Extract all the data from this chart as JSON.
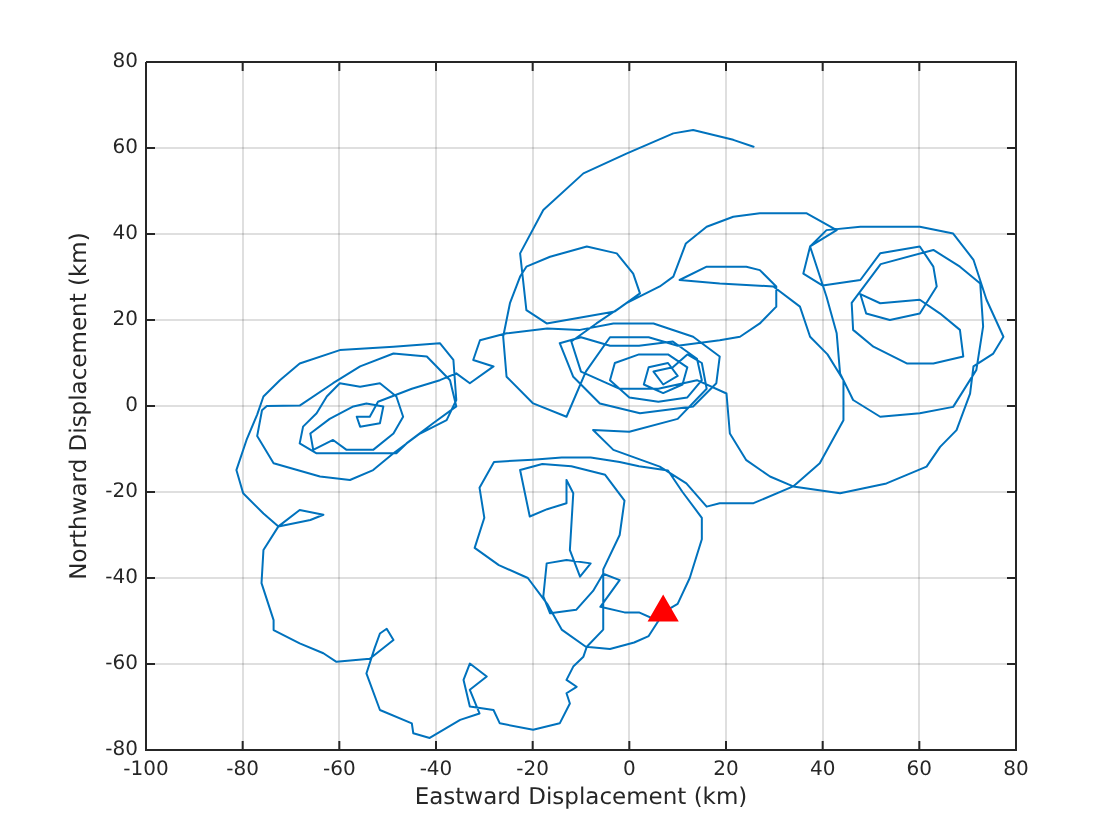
{
  "chart_data": {
    "type": "line",
    "xlabel": "Eastward Displacement (km)",
    "ylabel": "Northward Displacement (km)",
    "xlim": [
      -100,
      80
    ],
    "ylim": [
      -80,
      80
    ],
    "xticks": [
      -100,
      -80,
      -60,
      -40,
      -20,
      0,
      20,
      40,
      60,
      80
    ],
    "yticks": [
      -80,
      -60,
      -40,
      -20,
      0,
      20,
      40,
      60,
      80
    ],
    "grid": true,
    "series": [
      {
        "color": "#0072bd",
        "marker": "none",
        "x": [
          7,
          10,
          12.5,
          15,
          15,
          11,
          8,
          2,
          -2,
          -8,
          -14,
          -20,
          -28,
          -31,
          -30,
          -32,
          -27,
          -21,
          -17,
          -14,
          -9,
          -4,
          1,
          4,
          6,
          2,
          -1,
          -6,
          -2,
          -5.4,
          -7.5,
          -11,
          -16.4,
          -17.8,
          -17.1,
          -13,
          -8,
          -10.2,
          -12.3,
          -11.6,
          -13,
          -13,
          -17,
          -20.6,
          -22.6,
          -18,
          -12,
          -5,
          -1,
          -2,
          -5.4,
          -5.4,
          -8.8,
          -9.5,
          -11.6,
          -13,
          -10.9,
          -13,
          -12.3,
          -14.4,
          -19.9,
          -26.8,
          -28.1,
          -33,
          -34.3,
          -33,
          -29.5,
          -33,
          -31,
          -35,
          -41.3,
          -44.7,
          -45,
          -51.6,
          -54.4,
          -52.7,
          -51.6,
          -50.2,
          -48.8,
          -53.7,
          -60.6,
          -63.3,
          -68.2,
          -73.6,
          -73.6,
          -76.1,
          -75.7,
          -72.6,
          -68.2,
          -63.3,
          -66,
          -72.6,
          -75.7,
          -79.9,
          -81.3,
          -79.2,
          -77,
          -75.7,
          -72.3,
          -68.2,
          -59.9,
          -48.8,
          -39.2,
          -36.4,
          -35.8,
          -37.8,
          -43.3,
          -48.8,
          -53,
          -57.8,
          -64,
          -73.6,
          -77,
          -76,
          -75,
          -68.2,
          -61.3,
          -55.7,
          -48.8,
          -41.9,
          -37.1,
          -35.8,
          -40.6,
          -46.1,
          -48.2,
          -54.4,
          -64.7,
          -68.2,
          -67.5,
          -64.7,
          -62.6,
          -59.9,
          -55.7,
          -51.6,
          -48.2,
          -46.8,
          -48.8,
          -53,
          -58.5,
          -61.3,
          -65.4,
          -66,
          -62,
          -57.1,
          -54.4,
          -50.9,
          -51.6,
          -55.7,
          -56.4,
          -53.7,
          -52,
          -45,
          -39.2,
          -35.8,
          -33,
          -28.1,
          -32.3,
          -30.9,
          -25.4,
          -17,
          -10.2,
          -3.3,
          5,
          13.2,
          18.7,
          18,
          13.2,
          2.2,
          -6.1,
          -11.6,
          -14.4,
          -10,
          -4,
          2,
          9,
          14,
          15,
          12,
          6,
          0,
          -4,
          -3,
          2,
          8,
          12,
          11,
          7,
          3,
          4,
          8,
          10,
          7,
          5,
          9,
          12,
          15,
          16,
          10,
          0,
          -7.5,
          -3.3,
          6.3,
          11.8,
          16,
          18.7,
          25.7,
          33.9,
          43.6,
          53.2,
          61.5,
          64.3,
          67.7,
          70.5,
          71.2,
          75.3,
          77.4,
          73.9,
          71.2,
          67,
          60.1,
          53.2,
          47.8,
          40.8,
          37.4,
          36,
          40,
          47.8,
          51.9,
          60.1,
          62.9,
          63.6,
          60.1,
          53.9,
          49,
          47.8,
          51.9,
          60.1,
          64.3,
          68.4,
          69.1,
          62.9,
          57.4,
          50.5,
          46.3,
          46,
          52,
          62.9,
          68.4,
          72.6,
          73.2,
          71.8,
          67,
          60.1,
          51.9,
          46.3,
          43.6,
          42.9,
          40.8,
          37.4,
          42.9,
          36.7,
          27,
          21.5,
          16,
          11.7,
          9.1,
          6.3,
          -0.6,
          -6.8,
          -12,
          -10,
          -2,
          6,
          14,
          20.1,
          20.8,
          24.2,
          29.1,
          33.9,
          39.4,
          44.3,
          44.3,
          41,
          37.4,
          35.3,
          29.8,
          18.7,
          10.4,
          16,
          24.2,
          27,
          30.4,
          30.4,
          27,
          22.9,
          18.7,
          10,
          4,
          -4,
          -9,
          -13,
          -19.9,
          -25.4,
          -26.1,
          -24.7,
          -22.6,
          -21.3,
          -16.4,
          -8.8,
          -2.6,
          0.8,
          2.2,
          -3,
          -17.1,
          -21.3,
          -22.6,
          -17.8,
          -9.5,
          -0.6,
          9.1,
          13.2,
          21.5,
          25.7
        ],
        "values": [
          -48,
          -46,
          -40,
          -31,
          -26,
          -20,
          -15,
          -14,
          -13,
          -12,
          -12,
          -12.5,
          -13,
          -19,
          -26,
          -33,
          -37,
          -40,
          -46,
          -52,
          -56,
          -56.5,
          -55,
          -53.5,
          -50,
          -48,
          -48,
          -46.7,
          -40.5,
          -39,
          -43,
          -47.4,
          -48.2,
          -44.3,
          -36.6,
          -35.8,
          -36.6,
          -39.7,
          -33.5,
          -20.3,
          -17.2,
          -22.6,
          -24,
          -25.7,
          -14.9,
          -13.5,
          -14,
          -16,
          -22,
          -30,
          -38,
          -52,
          -56,
          -58.3,
          -60.6,
          -63.7,
          -65.3,
          -66.8,
          -69.2,
          -73.8,
          -75.3,
          -73.8,
          -70.7,
          -69.9,
          -63.7,
          -59.9,
          -62.9,
          -66,
          -71.5,
          -73,
          -77.2,
          -76.1,
          -73.8,
          -70.7,
          -62.2,
          -56.3,
          -52.9,
          -51.8,
          -54.4,
          -58.8,
          -59.5,
          -57.5,
          -55.2,
          -52.1,
          -49.8,
          -41.2,
          -33.5,
          -28,
          -24.2,
          -25.3,
          -26.5,
          -28,
          -25,
          -20.3,
          -14.9,
          -7.9,
          -2,
          2.2,
          6,
          9.9,
          13,
          13.8,
          14.6,
          10.7,
          1.4,
          -3.3,
          -6.4,
          -11,
          -14.9,
          -17.2,
          -16.4,
          -13.3,
          -7,
          -1,
          0,
          0.1,
          5.3,
          9.2,
          12.2,
          11.5,
          6,
          -0.1,
          -4,
          -8.7,
          -11,
          -11,
          -11,
          -8.7,
          -4.8,
          -1.7,
          2.2,
          5.3,
          4.5,
          5.3,
          2.2,
          -2.5,
          -6.4,
          -10.2,
          -10.2,
          -7.9,
          -10.2,
          -6.4,
          -3,
          -0.1,
          0.6,
          -0.1,
          -4,
          -4.8,
          -2.5,
          -2.5,
          1,
          4,
          6,
          7.6,
          5.3,
          9.2,
          10.7,
          15.3,
          16.9,
          18,
          17.7,
          19.2,
          19.2,
          16.1,
          11.5,
          5.3,
          -0.1,
          -1.7,
          0.6,
          6.8,
          14.6,
          16,
          14,
          14,
          15,
          11,
          6,
          2,
          1,
          2,
          6,
          10,
          12,
          12,
          9,
          5,
          3,
          5,
          9,
          10,
          7,
          5,
          8,
          9,
          12,
          10,
          4,
          -3,
          -6,
          -5.6,
          -10.2,
          -14.1,
          -18,
          -23.4,
          -22.6,
          -22.6,
          -18.7,
          -20.3,
          -18,
          -14.1,
          -9.5,
          -5.6,
          2.9,
          9.2,
          12.2,
          16.1,
          24.7,
          34,
          40.1,
          41.7,
          41.7,
          41.7,
          40.9,
          37.1,
          30.8,
          28,
          29.3,
          35.5,
          37.1,
          32.4,
          27.8,
          21.5,
          20,
          21.5,
          26,
          23.9,
          24.7,
          21.5,
          17.7,
          11.5,
          9.9,
          9.9,
          13.8,
          17.7,
          24,
          33,
          36.3,
          32.4,
          28.5,
          18.5,
          8.4,
          -0.2,
          -1.7,
          -2.5,
          1.4,
          7.6,
          16.9,
          25.4,
          37.1,
          40.9,
          44.8,
          44.8,
          44,
          41.7,
          37.8,
          30.1,
          27.8,
          23.9,
          19.2,
          15,
          8,
          4,
          4,
          6,
          2.9,
          -6.4,
          -12.6,
          -16.4,
          -18.7,
          -13.3,
          -3.3,
          6,
          12,
          16.1,
          23.1,
          27.8,
          28.5,
          29.3,
          32.4,
          32.4,
          31.6,
          27.8,
          23.1,
          19.2,
          16.1,
          15.3,
          14,
          16,
          16,
          8,
          -2.5,
          0.6,
          6.8,
          16.1,
          23.9,
          30.1,
          32.4,
          34.7,
          37.1,
          35.5,
          30.8,
          26.2,
          22,
          19.2,
          22.3,
          35.5,
          45.6,
          54.1,
          58.7,
          63.4,
          64.2,
          61.9,
          60.3
        ]
      },
      {
        "type": "scatter",
        "color": "#ff0000",
        "marker": "triangle",
        "x": [
          7
        ],
        "values": [
          -48
        ]
      }
    ]
  }
}
